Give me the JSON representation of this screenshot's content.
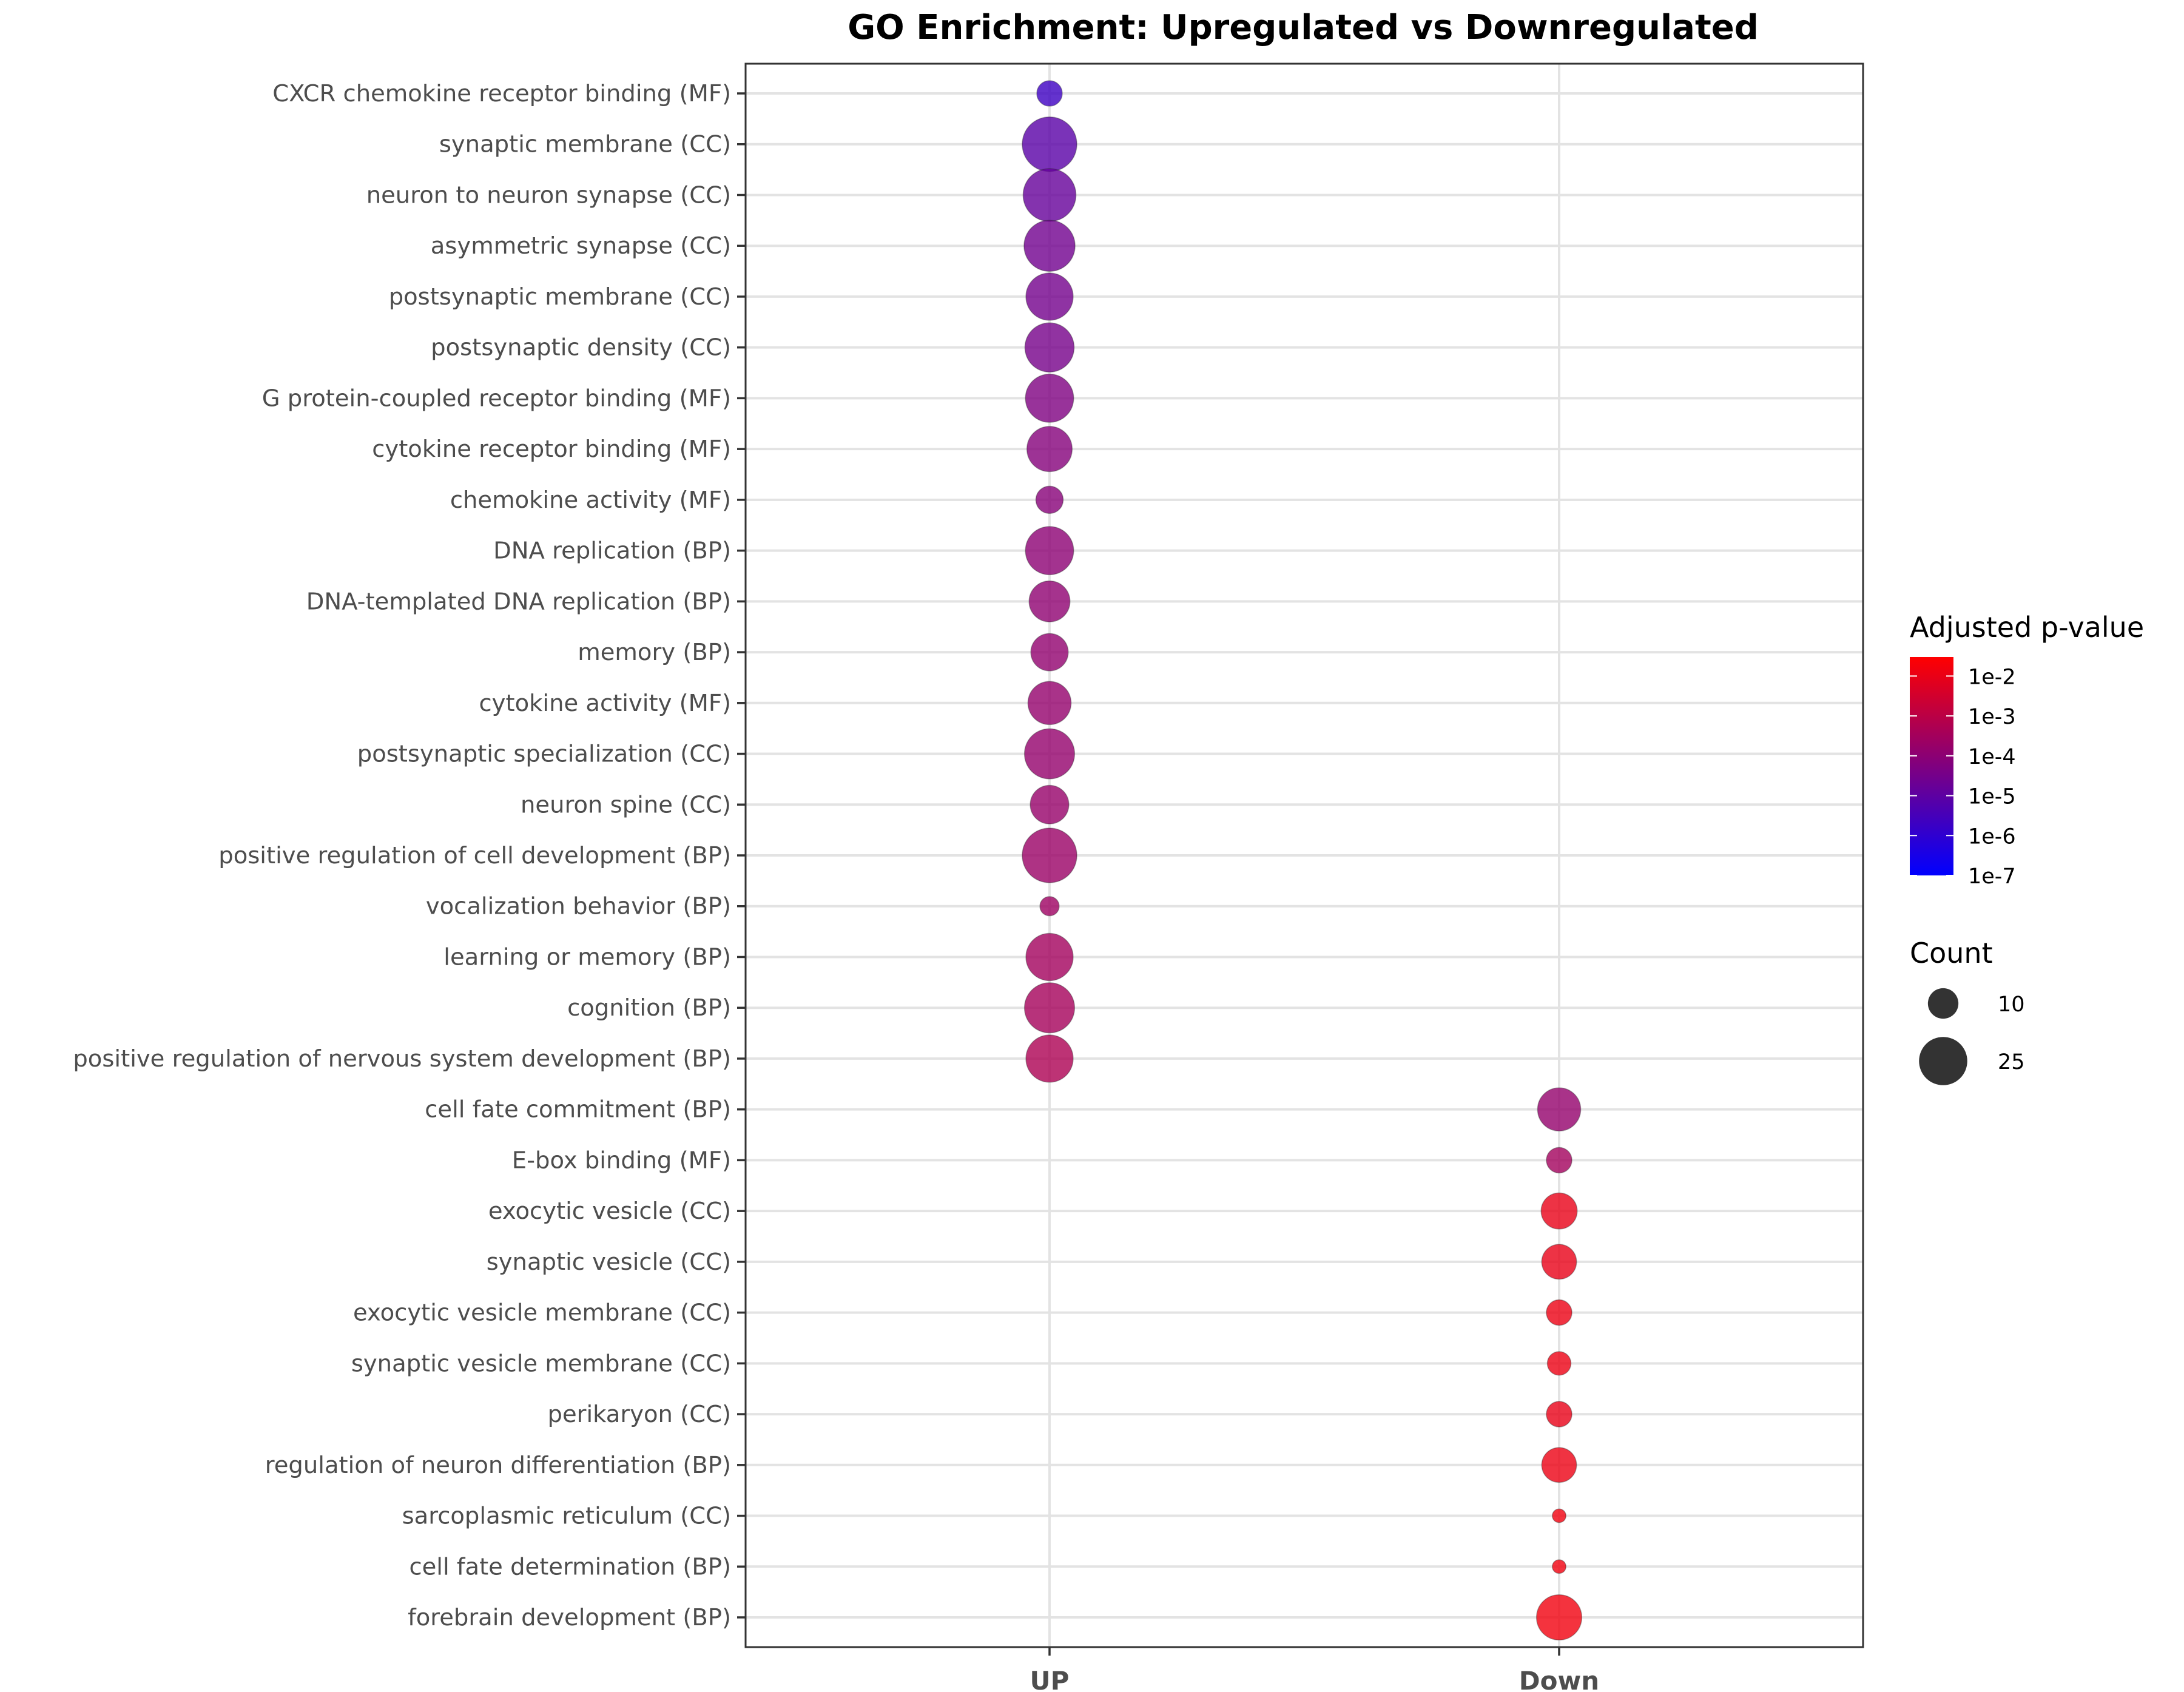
{
  "chart_data": {
    "type": "scatter",
    "title": "GO Enrichment: Upregulated vs Downregulated",
    "xlabel": "",
    "ylabel": "",
    "x_categories": [
      "UP",
      "Down"
    ],
    "y_categories": [
      "CXCR chemokine receptor binding (MF)",
      "synaptic membrane (CC)",
      "neuron to neuron synapse (CC)",
      "asymmetric synapse (CC)",
      "postsynaptic membrane (CC)",
      "postsynaptic density (CC)",
      "G protein-coupled receptor binding (MF)",
      "cytokine receptor binding (MF)",
      "chemokine activity (MF)",
      "DNA replication (BP)",
      "DNA-templated DNA replication (BP)",
      "memory (BP)",
      "cytokine activity (MF)",
      "postsynaptic specialization (CC)",
      "neuron spine (CC)",
      "positive regulation of cell development (BP)",
      "vocalization behavior (BP)",
      "learning or memory (BP)",
      "cognition (BP)",
      "positive regulation of nervous system development (BP)",
      "cell fate commitment (BP)",
      "E-box binding (MF)",
      "exocytic vesicle (CC)",
      "synaptic vesicle (CC)",
      "exocytic vesicle membrane (CC)",
      "synaptic vesicle membrane (CC)",
      "perikaryon (CC)",
      "regulation of neuron differentiation (BP)",
      "sarcoplasmic reticulum (CC)",
      "cell fate determination (BP)",
      "forebrain development (BP)"
    ],
    "points": [
      {
        "term": "CXCR chemokine receptor binding (MF)",
        "group": "UP",
        "count": 7,
        "padj": 2e-06
      },
      {
        "term": "synaptic membrane (CC)",
        "group": "UP",
        "count": 32,
        "padj": 8e-06
      },
      {
        "term": "neuron to neuron synapse (CC)",
        "group": "UP",
        "count": 30,
        "padj": 1.5e-05
      },
      {
        "term": "asymmetric synapse (CC)",
        "group": "UP",
        "count": 28,
        "padj": 2.5e-05
      },
      {
        "term": "postsynaptic membrane (CC)",
        "group": "UP",
        "count": 24,
        "padj": 3e-05
      },
      {
        "term": "postsynaptic density (CC)",
        "group": "UP",
        "count": 26,
        "padj": 3.5e-05
      },
      {
        "term": "G protein-coupled receptor binding (MF)",
        "group": "UP",
        "count": 25,
        "padj": 5e-05
      },
      {
        "term": "cytokine receptor binding (MF)",
        "group": "UP",
        "count": 22,
        "padj": 7e-05
      },
      {
        "term": "chemokine activity (MF)",
        "group": "UP",
        "count": 8,
        "padj": 8e-05
      },
      {
        "term": "DNA replication (BP)",
        "group": "UP",
        "count": 25,
        "padj": 0.0001
      },
      {
        "term": "DNA-templated DNA replication (BP)",
        "group": "UP",
        "count": 18,
        "padj": 0.00012
      },
      {
        "term": "memory (BP)",
        "group": "UP",
        "count": 15,
        "padj": 0.00013
      },
      {
        "term": "cytokine activity (MF)",
        "group": "UP",
        "count": 20,
        "padj": 0.00015
      },
      {
        "term": "postsynaptic specialization (CC)",
        "group": "UP",
        "count": 27,
        "padj": 0.00015
      },
      {
        "term": "neuron spine (CC)",
        "group": "UP",
        "count": 16,
        "padj": 0.00017
      },
      {
        "term": "positive regulation of cell development (BP)",
        "group": "UP",
        "count": 32,
        "padj": 0.0002
      },
      {
        "term": "vocalization behavior (BP)",
        "group": "UP",
        "count": 4,
        "padj": 0.00025
      },
      {
        "term": "learning or memory (BP)",
        "group": "UP",
        "count": 24,
        "padj": 0.0003
      },
      {
        "term": "cognition (BP)",
        "group": "UP",
        "count": 27,
        "padj": 0.00035
      },
      {
        "term": "positive regulation of nervous system development (BP)",
        "group": "UP",
        "count": 24,
        "padj": 0.0005
      },
      {
        "term": "cell fate commitment (BP)",
        "group": "Down",
        "count": 20,
        "padj": 0.00015
      },
      {
        "term": "E-box binding (MF)",
        "group": "Down",
        "count": 7,
        "padj": 0.0003
      },
      {
        "term": "exocytic vesicle (CC)",
        "group": "Down",
        "count": 14,
        "padj": 0.01
      },
      {
        "term": "synaptic vesicle (CC)",
        "group": "Down",
        "count": 13,
        "padj": 0.01
      },
      {
        "term": "exocytic vesicle membrane (CC)",
        "group": "Down",
        "count": 7,
        "padj": 0.012
      },
      {
        "term": "synaptic vesicle membrane (CC)",
        "group": "Down",
        "count": 6,
        "padj": 0.012
      },
      {
        "term": "perikaryon (CC)",
        "group": "Down",
        "count": 7,
        "padj": 0.01
      },
      {
        "term": "regulation of neuron differentiation (BP)",
        "group": "Down",
        "count": 13,
        "padj": 0.012
      },
      {
        "term": "sarcoplasmic reticulum (CC)",
        "group": "Down",
        "count": 2,
        "padj": 0.015
      },
      {
        "term": "cell fate determination (BP)",
        "group": "Down",
        "count": 2,
        "padj": 0.015
      },
      {
        "term": "forebrain development (BP)",
        "group": "Down",
        "count": 22,
        "padj": 0.015
      }
    ],
    "color_legend": {
      "title": "Adjusted p-value",
      "scale": "log10",
      "range": [
        1e-07,
        0.03
      ],
      "low_color": "#0000ff",
      "high_color": "#ff0000",
      "ticks": [
        {
          "label": "1e-2",
          "value": 0.01
        },
        {
          "label": "1e-3",
          "value": 0.001
        },
        {
          "label": "1e-4",
          "value": 0.0001
        },
        {
          "label": "1e-5",
          "value": 1e-05
        },
        {
          "label": "1e-6",
          "value": 1e-06
        },
        {
          "label": "1e-7",
          "value": 1e-07
        }
      ]
    },
    "size_legend": {
      "title": "Count",
      "entries": [
        {
          "label": "10",
          "value": 10
        },
        {
          "label": "25",
          "value": 25
        }
      ]
    },
    "count_range": [
      2,
      32
    ],
    "point_alpha": 0.8,
    "grid": true,
    "legend_position": "right"
  }
}
